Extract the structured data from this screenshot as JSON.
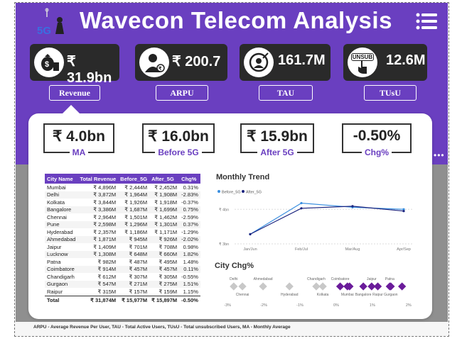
{
  "header": {
    "title": "Wavecon Telecom Analysis",
    "logo_text": "5G"
  },
  "kpis": [
    {
      "value": "₹ 31.9bn",
      "icon": "money-bag-icon"
    },
    {
      "value": "₹ 200.7",
      "icon": "user-rupee-icon"
    },
    {
      "value": "161.7M",
      "icon": "target-user-icon"
    },
    {
      "value": "12.6M",
      "icon": "unsubscribe-hand-icon",
      "icon_text": "UNSUB"
    }
  ],
  "tabs": [
    "Revenue",
    "ARPU",
    "TAU",
    "TUsU"
  ],
  "stats": [
    {
      "value": "₹ 4.0bn",
      "label": "MA"
    },
    {
      "value": "₹ 16.0bn",
      "label": "Before 5G"
    },
    {
      "value": "₹ 15.9bn",
      "label": "After 5G"
    },
    {
      "value": "-0.50%",
      "label": "Chg%"
    }
  ],
  "table": {
    "headers": [
      "City Name",
      "Total Revenue",
      "Before_5G",
      "After_5G",
      "Chg%"
    ],
    "rows": [
      [
        "Mumbai",
        "₹ 4,896M",
        "₹ 2,444M",
        "₹ 2,452M",
        "0.31%"
      ],
      [
        "Delhi",
        "₹ 3,872M",
        "₹ 1,964M",
        "₹ 1,908M",
        "-2.83%"
      ],
      [
        "Kolkata",
        "₹ 3,844M",
        "₹ 1,926M",
        "₹ 1,918M",
        "-0.37%"
      ],
      [
        "Bangalore",
        "₹ 3,386M",
        "₹ 1,687M",
        "₹ 1,699M",
        "0.75%"
      ],
      [
        "Chennai",
        "₹ 2,964M",
        "₹ 1,501M",
        "₹ 1,462M",
        "-2.59%"
      ],
      [
        "Pune",
        "₹ 2,598M",
        "₹ 1,296M",
        "₹ 1,301M",
        "0.37%"
      ],
      [
        "Hyderabad",
        "₹ 2,357M",
        "₹ 1,186M",
        "₹ 1,171M",
        "-1.29%"
      ],
      [
        "Ahmedabad",
        "₹ 1,871M",
        "₹ 945M",
        "₹ 926M",
        "-2.02%"
      ],
      [
        "Jaipur",
        "₹ 1,409M",
        "₹ 701M",
        "₹ 708M",
        "0.98%"
      ],
      [
        "Lucknow",
        "₹ 1,308M",
        "₹ 648M",
        "₹ 660M",
        "1.82%"
      ],
      [
        "Patna",
        "₹ 982M",
        "₹ 487M",
        "₹ 495M",
        "1.48%"
      ],
      [
        "Coimbatore",
        "₹ 914M",
        "₹ 457M",
        "₹ 457M",
        "0.11%"
      ],
      [
        "Chandigarh",
        "₹ 612M",
        "₹ 307M",
        "₹ 305M",
        "-0.55%"
      ],
      [
        "Gurgaon",
        "₹ 547M",
        "₹ 271M",
        "₹ 275M",
        "1.51%"
      ],
      [
        "Raipur",
        "₹ 315M",
        "₹ 157M",
        "₹ 159M",
        "1.15%"
      ]
    ],
    "total": [
      "Total",
      "₹ 31,874M",
      "₹ 15,977M",
      "₹ 15,897M",
      "-0.50%"
    ]
  },
  "chart_data": [
    {
      "type": "line",
      "title": "Monthly Trend",
      "categories": [
        "Jan/Jun",
        "Feb/Jul",
        "Mar/Aug",
        "Apr/Sep"
      ],
      "series": [
        {
          "name": "Before_5G",
          "color": "#3a8fe0",
          "values": [
            3.28,
            4.18,
            4.06,
            4.0
          ]
        },
        {
          "name": "After_5G",
          "color": "#1a237e",
          "values": [
            3.28,
            4.03,
            4.09,
            3.95
          ]
        }
      ],
      "y_ticks": [
        "₹ 4bn",
        "₹ 3bn"
      ],
      "ylim": [
        3.0,
        4.6
      ]
    },
    {
      "type": "scatter",
      "title": "City Chg%",
      "x_ticks": [
        "-3%",
        "-2%",
        "-1%",
        "0%",
        "1%",
        "2%"
      ],
      "xlim": [
        -3.2,
        2.2
      ],
      "points": [
        {
          "name": "Delhi",
          "value": -2.83,
          "color": "#c8c8c8"
        },
        {
          "name": "Chennai",
          "value": -2.59,
          "color": "#c8c8c8"
        },
        {
          "name": "Ahmedabad",
          "value": -2.02,
          "color": "#c8c8c8"
        },
        {
          "name": "Hyderabad",
          "value": -1.29,
          "color": "#c8c8c8"
        },
        {
          "name": "Chandigarh",
          "value": -0.55,
          "color": "#c8c8c8"
        },
        {
          "name": "Kolkata",
          "value": -0.37,
          "color": "#c8c8c8"
        },
        {
          "name": "Coimbatore",
          "value": 0.11,
          "color": "#6a1b9a"
        },
        {
          "name": "Mumbai",
          "value": 0.31,
          "color": "#6a1b9a"
        },
        {
          "name": "Pune",
          "value": 0.37,
          "color": "#6a1b9a"
        },
        {
          "name": "Bangalore",
          "value": 0.75,
          "color": "#6a1b9a"
        },
        {
          "name": "Jaipur",
          "value": 0.98,
          "color": "#6a1b9a"
        },
        {
          "name": "Raipur",
          "value": 1.15,
          "color": "#6a1b9a"
        },
        {
          "name": "Patna",
          "value": 1.48,
          "color": "#6a1b9a"
        },
        {
          "name": "Gurgaon",
          "value": 1.51,
          "color": "#6a1b9a"
        },
        {
          "name": "Lucknow",
          "value": 1.82,
          "color": "#6a1b9a"
        }
      ],
      "shown_labels": [
        "Delhi",
        "Chennai",
        "Ahmedabad",
        "Hyderabad",
        "Chandigarh",
        "Kolkata",
        "Coimbatore",
        "Mumbai",
        "Bangalore",
        "Raipur",
        "Jaipur",
        "Patna",
        "Gurgaon"
      ]
    }
  ],
  "footer": "ARPU - Average Revenue Per User, TAU - Total Active Users, TUsU - Total unsubscribed Users, MA - Monthly Average"
}
